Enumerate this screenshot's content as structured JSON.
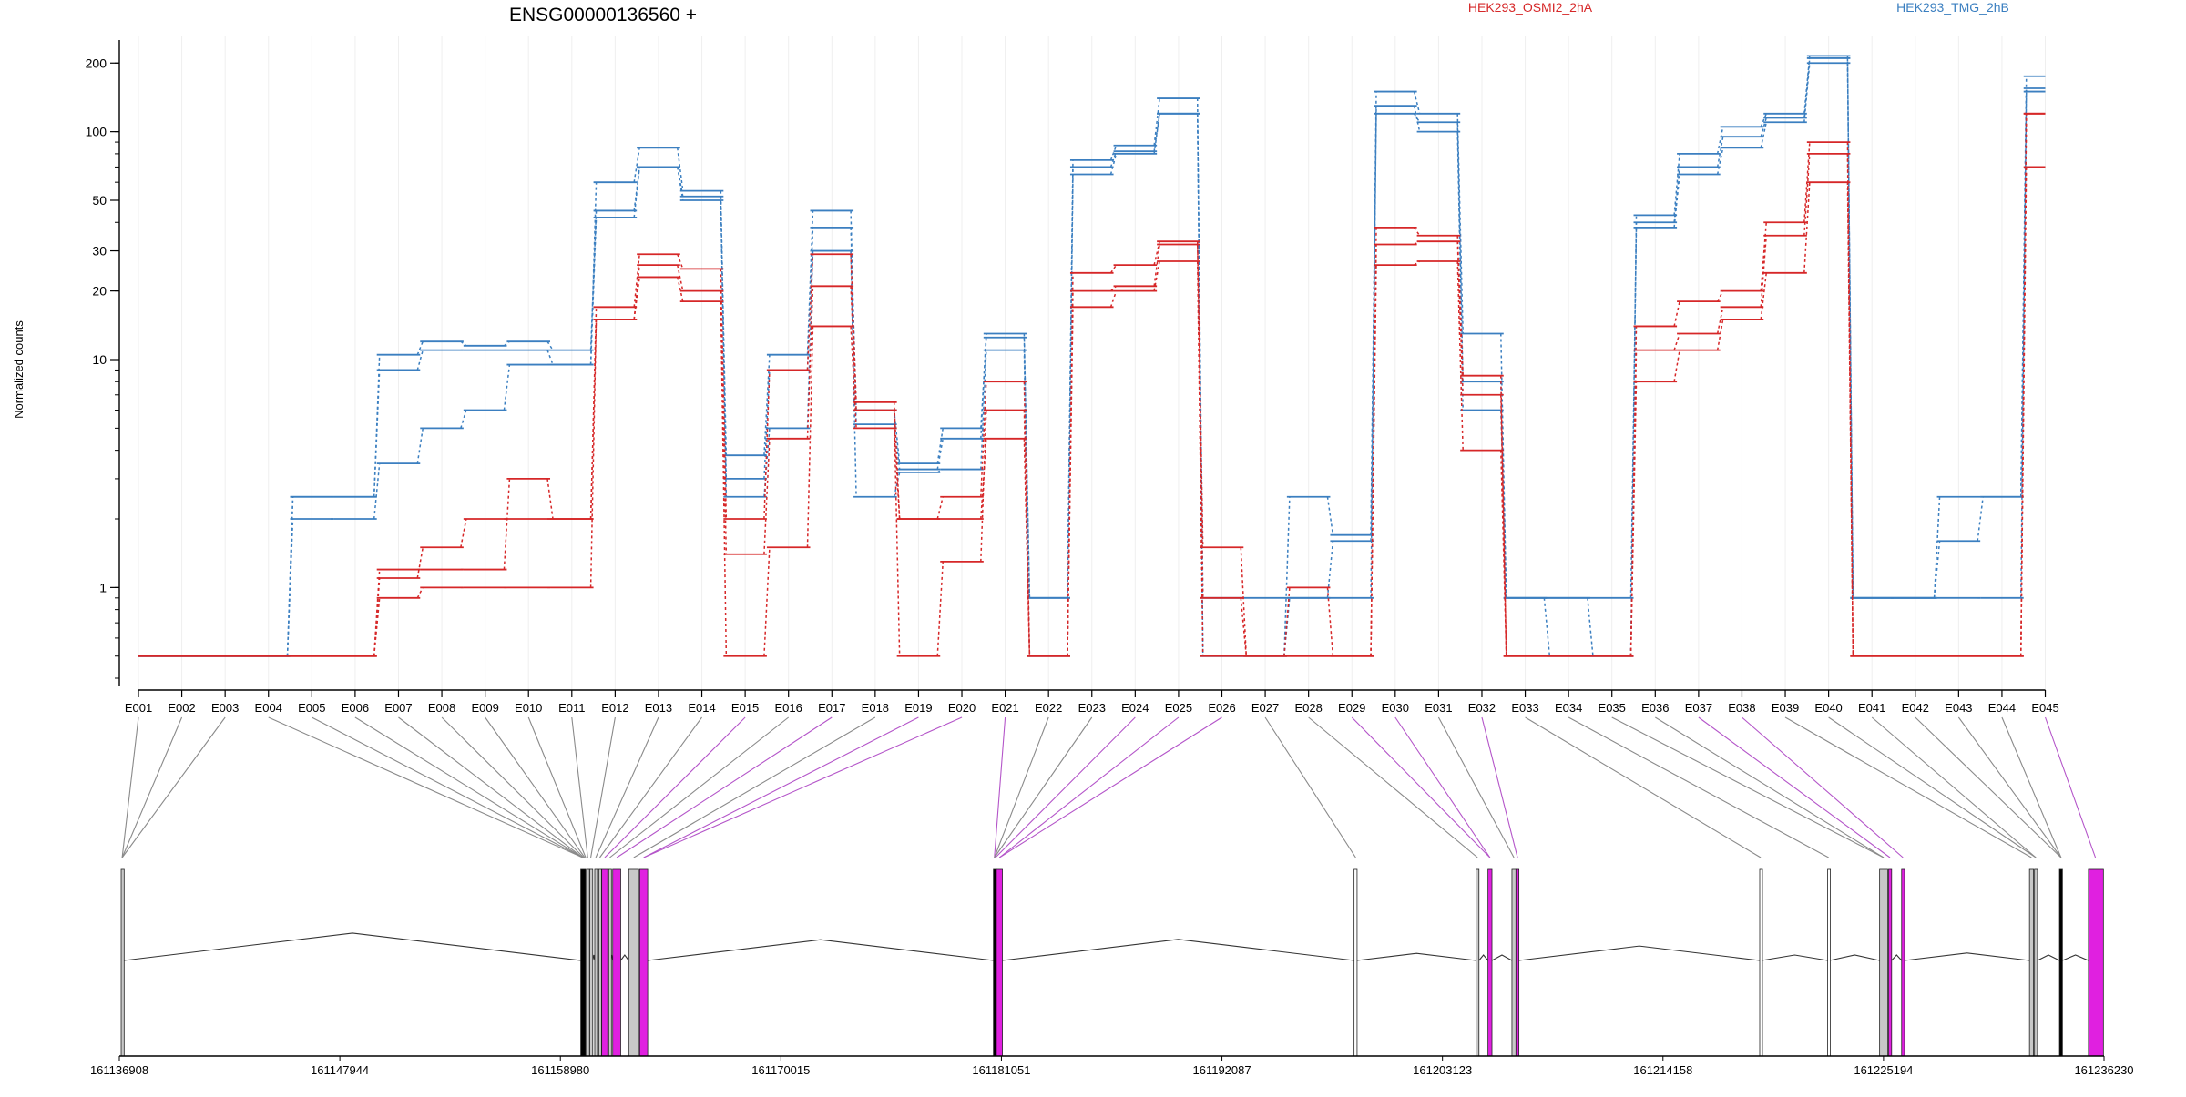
{
  "chart_data": {
    "type": "line",
    "title": "ENSG00000136560 +",
    "ylabel": "Normalized counts",
    "xlabel": "",
    "yscale": "log",
    "ylim": [
      0.4,
      250
    ],
    "yticks": [
      {
        "value": 1,
        "label": "1"
      },
      {
        "value": 10,
        "label": "10"
      },
      {
        "value": 20,
        "label": "20"
      },
      {
        "value": 30,
        "label": "30"
      },
      {
        "value": 50,
        "label": "50"
      },
      {
        "value": 100,
        "label": "100"
      },
      {
        "value": 200,
        "label": "200"
      }
    ],
    "grid": true,
    "legend": [
      {
        "label": "HEK293_OSMI2_2hA",
        "color": "#d62728"
      },
      {
        "label": "HEK293_TMG_2hB",
        "color": "#3b7fc0"
      }
    ],
    "categories": [
      "E001",
      "E002",
      "E003",
      "E004",
      "E005",
      "E006",
      "E007",
      "E008",
      "E009",
      "E010",
      "E011",
      "E012",
      "E013",
      "E014",
      "E015",
      "E016",
      "E017",
      "E018",
      "E019",
      "E020",
      "E021",
      "E022",
      "E023",
      "E024",
      "E025",
      "E026",
      "E027",
      "E028",
      "E029",
      "E030",
      "E031",
      "E032",
      "E033",
      "E034",
      "E035",
      "E036",
      "E037",
      "E038",
      "E039",
      "E040",
      "E041",
      "E042",
      "E043",
      "E044",
      "E045"
    ],
    "series": [
      {
        "group": "HEK293_TMG_2hB",
        "color": "#3b7fc0",
        "values": [
          0.5,
          0.5,
          0.5,
          0.5,
          2.5,
          2.5,
          10.5,
          12,
          11.5,
          12,
          11,
          45,
          70,
          52,
          3.8,
          10.5,
          45,
          5.2,
          3.3,
          4.5,
          13,
          0.9,
          75,
          87,
          140,
          0.5,
          0.5,
          2.5,
          1.7,
          150,
          120,
          13,
          0.9,
          0.9,
          0.5,
          43,
          80,
          105,
          120,
          215,
          0.9,
          0.9,
          2.5,
          2.5,
          175
        ]
      },
      {
        "group": "HEK293_TMG_2hB",
        "color": "#3b7fc0",
        "values": [
          0.5,
          0.5,
          0.5,
          0.5,
          2.5,
          2.5,
          9,
          11,
          11,
          11,
          9.5,
          60,
          85,
          55,
          3,
          9,
          38,
          6,
          3.5,
          5,
          12.5,
          0.9,
          70,
          82,
          120,
          0.5,
          0.5,
          0.9,
          1.6,
          120,
          110,
          8,
          0.9,
          0.5,
          0.5,
          40,
          70,
          95,
          115,
          210,
          0.9,
          0.9,
          1.6,
          2.5,
          155
        ]
      },
      {
        "group": "HEK293_TMG_2hB",
        "color": "#3b7fc0",
        "values": [
          0.5,
          0.5,
          0.5,
          0.5,
          2,
          2,
          3.5,
          5,
          6,
          9.5,
          9.5,
          42,
          70,
          50,
          2.5,
          5,
          30,
          2.5,
          3.2,
          3.3,
          11,
          0.5,
          65,
          80,
          120,
          0.9,
          0.9,
          0.9,
          0.9,
          130,
          100,
          6,
          0.9,
          0.9,
          0.9,
          38,
          65,
          85,
          110,
          200,
          0.9,
          0.9,
          0.9,
          0.9,
          150
        ]
      },
      {
        "group": "HEK293_OSMI2_2hA",
        "color": "#d62728",
        "values": [
          0.5,
          0.5,
          0.5,
          0.5,
          0.5,
          0.5,
          1.2,
          1.2,
          1.2,
          3,
          2,
          17,
          29,
          25,
          2,
          9,
          29,
          6.5,
          2,
          2.5,
          8,
          0.5,
          24,
          26,
          33,
          1.5,
          0.5,
          1,
          0.5,
          38,
          35,
          8.5,
          0.5,
          0.5,
          0.5,
          14,
          18,
          20,
          40,
          90,
          0.5,
          0.5,
          0.5,
          0.5,
          120
        ]
      },
      {
        "group": "HEK293_OSMI2_2hA",
        "color": "#d62728",
        "values": [
          0.5,
          0.5,
          0.5,
          0.5,
          0.5,
          0.5,
          1.1,
          1.5,
          2,
          2,
          2,
          15,
          26,
          20,
          1.4,
          4.5,
          21,
          6,
          0.5,
          1.3,
          6,
          0.5,
          20,
          21,
          32,
          0.9,
          0.5,
          0.5,
          0.5,
          32,
          33,
          7,
          0.5,
          0.5,
          0.5,
          11,
          13,
          17,
          35,
          80,
          0.5,
          0.5,
          0.5,
          0.5,
          120
        ]
      },
      {
        "group": "HEK293_OSMI2_2hA",
        "color": "#d62728",
        "values": [
          0.5,
          0.5,
          0.5,
          0.5,
          0.5,
          0.5,
          0.9,
          1,
          1,
          1,
          1,
          15,
          23,
          18,
          0.5,
          1.5,
          14,
          5,
          2,
          2,
          4.5,
          0.5,
          17,
          20,
          27,
          0.5,
          0.5,
          0.5,
          0.5,
          26,
          27,
          4,
          0.5,
          0.5,
          0.5,
          8,
          11,
          15,
          24,
          60,
          0.5,
          0.5,
          0.5,
          0.5,
          70
        ]
      }
    ],
    "genomic_ticks": [
      "161136908",
      "161147944",
      "161158980",
      "161170015",
      "161181051",
      "161192087",
      "161203123",
      "161214158",
      "161225194",
      "161236230"
    ],
    "genomic_range": [
      161136908,
      161236230
    ],
    "exons": [
      {
        "start": 161137000,
        "end": 161137150,
        "color": "#c8c8c8"
      },
      {
        "start": 161160000,
        "end": 161160250,
        "color": "#000000"
      },
      {
        "start": 161160300,
        "end": 161160380,
        "color": "#c8c8c8"
      },
      {
        "start": 161160450,
        "end": 161160600,
        "color": "#c8c8c8"
      },
      {
        "start": 161160700,
        "end": 161160800,
        "color": "#c8c8c8"
      },
      {
        "start": 161160900,
        "end": 161161000,
        "color": "#c8c8c8"
      },
      {
        "start": 161161050,
        "end": 161161350,
        "color": "#e020e0"
      },
      {
        "start": 161161400,
        "end": 161161500,
        "color": "#c8c8c8"
      },
      {
        "start": 161161600,
        "end": 161162000,
        "color": "#e020e0"
      },
      {
        "start": 161162400,
        "end": 161162900,
        "color": "#c8c8c8"
      },
      {
        "start": 161162950,
        "end": 161163350,
        "color": "#e020e0"
      },
      {
        "start": 161180650,
        "end": 161180800,
        "color": "#000000"
      },
      {
        "start": 161180800,
        "end": 161181100,
        "color": "#e020e0"
      },
      {
        "start": 161198700,
        "end": 161198850,
        "color": "#ffffff"
      },
      {
        "start": 161204800,
        "end": 161204950,
        "color": "#c8c8c8"
      },
      {
        "start": 161205400,
        "end": 161205600,
        "color": "#e020e0"
      },
      {
        "start": 161206600,
        "end": 161206800,
        "color": "#c8c8c8"
      },
      {
        "start": 161206800,
        "end": 161206950,
        "color": "#e020e0"
      },
      {
        "start": 161219000,
        "end": 161219100,
        "color": "#ffffff"
      },
      {
        "start": 161222400,
        "end": 161222500,
        "color": "#ffffff"
      },
      {
        "start": 161225000,
        "end": 161225400,
        "color": "#c8c8c8"
      },
      {
        "start": 161225450,
        "end": 161225600,
        "color": "#e020e0"
      },
      {
        "start": 161226100,
        "end": 161226250,
        "color": "#e020e0"
      },
      {
        "start": 161232500,
        "end": 161232700,
        "color": "#c8c8c8"
      },
      {
        "start": 161232750,
        "end": 161232900,
        "color": "#c8c8c8"
      },
      {
        "start": 161234000,
        "end": 161234150,
        "color": "#000000"
      },
      {
        "start": 161235450,
        "end": 161236200,
        "color": "#e020e0"
      }
    ],
    "exon_links": [
      {
        "exon": "E001",
        "target": 161137050,
        "highlight": false
      },
      {
        "exon": "E002",
        "target": 161137050,
        "highlight": false
      },
      {
        "exon": "E003",
        "target": 161137050,
        "highlight": false
      },
      {
        "exon": "E004",
        "target": 161160100,
        "highlight": false
      },
      {
        "exon": "E005",
        "target": 161160100,
        "highlight": false
      },
      {
        "exon": "E006",
        "target": 161160100,
        "highlight": false
      },
      {
        "exon": "E007",
        "target": 161160100,
        "highlight": false
      },
      {
        "exon": "E008",
        "target": 161160150,
        "highlight": false
      },
      {
        "exon": "E009",
        "target": 161160200,
        "highlight": false
      },
      {
        "exon": "E010",
        "target": 161160250,
        "highlight": false
      },
      {
        "exon": "E011",
        "target": 161160350,
        "highlight": false
      },
      {
        "exon": "E012",
        "target": 161160500,
        "highlight": false
      },
      {
        "exon": "E013",
        "target": 161160750,
        "highlight": false
      },
      {
        "exon": "E014",
        "target": 161160950,
        "highlight": false
      },
      {
        "exon": "E015",
        "target": 161161200,
        "highlight": true
      },
      {
        "exon": "E016",
        "target": 161161450,
        "highlight": false
      },
      {
        "exon": "E017",
        "target": 161161800,
        "highlight": true
      },
      {
        "exon": "E018",
        "target": 161162650,
        "highlight": false
      },
      {
        "exon": "E019",
        "target": 161163150,
        "highlight": true
      },
      {
        "exon": "E020",
        "target": 161163150,
        "highlight": true
      },
      {
        "exon": "E021",
        "target": 161180700,
        "highlight": true
      },
      {
        "exon": "E022",
        "target": 161180700,
        "highlight": false
      },
      {
        "exon": "E023",
        "target": 161180700,
        "highlight": false
      },
      {
        "exon": "E024",
        "target": 161180750,
        "highlight": true
      },
      {
        "exon": "E025",
        "target": 161180950,
        "highlight": true
      },
      {
        "exon": "E026",
        "target": 161180950,
        "highlight": true
      },
      {
        "exon": "E027",
        "target": 161198780,
        "highlight": false
      },
      {
        "exon": "E028",
        "target": 161204880,
        "highlight": false
      },
      {
        "exon": "E029",
        "target": 161205500,
        "highlight": true
      },
      {
        "exon": "E030",
        "target": 161205500,
        "highlight": true
      },
      {
        "exon": "E031",
        "target": 161206700,
        "highlight": false
      },
      {
        "exon": "E032",
        "target": 161206880,
        "highlight": true
      },
      {
        "exon": "E033",
        "target": 161219050,
        "highlight": false
      },
      {
        "exon": "E034",
        "target": 161222450,
        "highlight": false
      },
      {
        "exon": "E035",
        "target": 161225200,
        "highlight": false
      },
      {
        "exon": "E036",
        "target": 161225200,
        "highlight": false
      },
      {
        "exon": "E037",
        "target": 161225520,
        "highlight": true
      },
      {
        "exon": "E038",
        "target": 161226170,
        "highlight": true
      },
      {
        "exon": "E039",
        "target": 161232600,
        "highlight": false
      },
      {
        "exon": "E040",
        "target": 161232820,
        "highlight": false
      },
      {
        "exon": "E041",
        "target": 161232820,
        "highlight": false
      },
      {
        "exon": "E042",
        "target": 161234080,
        "highlight": false
      },
      {
        "exon": "E043",
        "target": 161234080,
        "highlight": false
      },
      {
        "exon": "E044",
        "target": 161234080,
        "highlight": false
      },
      {
        "exon": "E045",
        "target": 161235800,
        "highlight": true
      }
    ]
  }
}
